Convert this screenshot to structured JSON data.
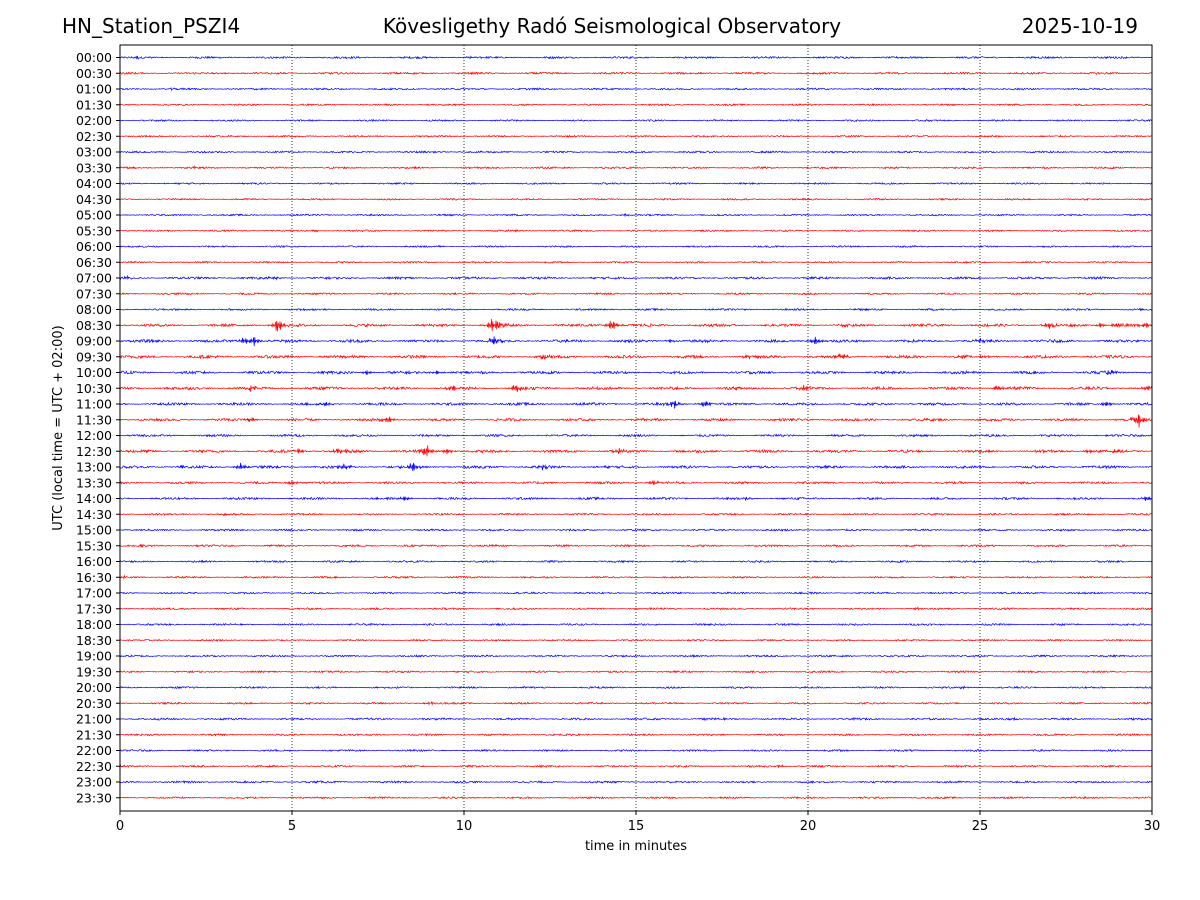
{
  "header": {
    "station": "HN_Station_PSZI4",
    "observatory": "Kövesligethy Radó Seismological Observatory",
    "date": "2025-10-19"
  },
  "chart_data": {
    "type": "line",
    "title": "Kövesligethy Radó Seismological Observatory",
    "xlabel": "time in minutes",
    "ylabel": "UTC (local time = UTC + 02:00)",
    "xlim": [
      0,
      30
    ],
    "x_ticks": [
      0,
      5,
      10,
      15,
      20,
      25,
      30
    ],
    "vertical_grid_minutes": [
      5,
      10,
      15,
      20,
      25
    ],
    "grid": "dotted vertical",
    "trace_colors": [
      "#0000ff",
      "#ff0000"
    ],
    "rows": [
      {
        "label": "00:00",
        "amp": 0.8,
        "events": [
          [
            0.5,
            1.0
          ],
          [
            10.2,
            0.8
          ],
          [
            17.2,
            1.2
          ]
        ]
      },
      {
        "label": "00:30",
        "amp": 0.8,
        "events": [
          [
            4.6,
            1.2
          ],
          [
            3.0,
            0.8
          ]
        ]
      },
      {
        "label": "01:00",
        "amp": 0.7,
        "events": [
          [
            1.5,
            0.8
          ]
        ]
      },
      {
        "label": "01:30",
        "amp": 0.6,
        "events": [
          [
            9.0,
            0.8
          ]
        ]
      },
      {
        "label": "02:00",
        "amp": 0.6,
        "events": []
      },
      {
        "label": "02:30",
        "amp": 0.6,
        "events": []
      },
      {
        "label": "03:00",
        "amp": 0.7,
        "events": []
      },
      {
        "label": "03:30",
        "amp": 0.7,
        "events": [
          [
            2.2,
            1.2
          ]
        ]
      },
      {
        "label": "04:00",
        "amp": 0.6,
        "events": []
      },
      {
        "label": "04:30",
        "amp": 0.6,
        "events": []
      },
      {
        "label": "05:00",
        "amp": 0.6,
        "events": [
          [
            14.7,
            1.5
          ]
        ]
      },
      {
        "label": "05:30",
        "amp": 0.6,
        "events": [
          [
            11.5,
            1.2
          ],
          [
            5.7,
            1.0
          ]
        ]
      },
      {
        "label": "06:00",
        "amp": 0.6,
        "events": [
          [
            9.3,
            1.0
          ]
        ]
      },
      {
        "label": "06:30",
        "amp": 0.6,
        "events": []
      },
      {
        "label": "07:00",
        "amp": 0.9,
        "events": [
          [
            0.2,
            1.2
          ],
          [
            4.5,
            1.8
          ]
        ]
      },
      {
        "label": "07:30",
        "amp": 0.7,
        "events": []
      },
      {
        "label": "08:00",
        "amp": 0.7,
        "events": []
      },
      {
        "label": "08:30",
        "amp": 1.2,
        "events": [
          [
            4.6,
            9.0
          ],
          [
            10.8,
            6.0
          ],
          [
            11.0,
            5.0
          ],
          [
            14.3,
            6.5
          ],
          [
            21.0,
            2.0
          ],
          [
            27.0,
            4.0
          ],
          [
            28.5,
            3.0
          ],
          [
            29.0,
            3.0
          ],
          [
            29.8,
            4.0
          ]
        ]
      },
      {
        "label": "09:00",
        "amp": 1.2,
        "events": [
          [
            3.6,
            4.0
          ],
          [
            3.9,
            5.0
          ],
          [
            10.9,
            7.0
          ],
          [
            16.0,
            2.0
          ],
          [
            20.2,
            5.0
          ],
          [
            25.0,
            3.0
          ]
        ]
      },
      {
        "label": "09:30",
        "amp": 1.3,
        "events": [
          [
            12.3,
            3.0
          ],
          [
            18.2,
            3.0
          ],
          [
            21.0,
            5.0
          ],
          [
            24.5,
            2.5
          ]
        ]
      },
      {
        "label": "10:00",
        "amp": 1.2,
        "events": [
          [
            7.2,
            3.0
          ],
          [
            9.2,
            2.5
          ],
          [
            28.8,
            2.5
          ]
        ]
      },
      {
        "label": "10:30",
        "amp": 1.3,
        "events": [
          [
            3.8,
            3.0
          ],
          [
            9.7,
            4.0
          ],
          [
            11.5,
            5.0
          ],
          [
            19.9,
            4.0
          ],
          [
            25.5,
            3.5
          ],
          [
            29.9,
            3.0
          ]
        ]
      },
      {
        "label": "11:00",
        "amp": 1.1,
        "events": [
          [
            6.0,
            3.0
          ],
          [
            16.1,
            6.0
          ],
          [
            17.0,
            4.0
          ],
          [
            28.7,
            3.0
          ]
        ]
      },
      {
        "label": "11:30",
        "amp": 1.1,
        "events": [
          [
            3.8,
            3.0
          ],
          [
            7.8,
            5.0
          ],
          [
            29.6,
            9.0
          ]
        ]
      },
      {
        "label": "12:00",
        "amp": 0.9,
        "events": []
      },
      {
        "label": "12:30",
        "amp": 1.2,
        "events": [
          [
            5.2,
            3.0
          ],
          [
            6.4,
            5.0
          ],
          [
            8.9,
            8.0
          ],
          [
            9.5,
            4.0
          ],
          [
            14.5,
            3.0
          ],
          [
            28.2,
            3.0
          ]
        ]
      },
      {
        "label": "13:00",
        "amp": 1.1,
        "events": [
          [
            1.8,
            2.5
          ],
          [
            3.5,
            4.0
          ],
          [
            6.5,
            4.0
          ],
          [
            8.5,
            7.0
          ],
          [
            12.3,
            3.0
          ]
        ]
      },
      {
        "label": "13:30",
        "amp": 0.9,
        "events": [
          [
            5.0,
            3.0
          ],
          [
            15.5,
            2.5
          ]
        ]
      },
      {
        "label": "14:00",
        "amp": 0.9,
        "events": [
          [
            8.3,
            3.0
          ],
          [
            18.2,
            2.0
          ],
          [
            29.8,
            2.0
          ]
        ]
      },
      {
        "label": "14:30",
        "amp": 0.7,
        "events": [
          [
            3.0,
            1.5
          ]
        ]
      },
      {
        "label": "15:00",
        "amp": 0.7,
        "events": []
      },
      {
        "label": "15:30",
        "amp": 0.8,
        "events": [
          [
            0.6,
            1.5
          ]
        ]
      },
      {
        "label": "16:00",
        "amp": 0.7,
        "events": []
      },
      {
        "label": "16:30",
        "amp": 0.7,
        "events": [
          [
            0.1,
            1.5
          ]
        ]
      },
      {
        "label": "17:00",
        "amp": 0.7,
        "events": []
      },
      {
        "label": "17:30",
        "amp": 0.7,
        "events": [
          [
            15.0,
            1.2
          ],
          [
            23.2,
            1.5
          ]
        ]
      },
      {
        "label": "18:00",
        "amp": 0.7,
        "events": []
      },
      {
        "label": "18:30",
        "amp": 0.6,
        "events": []
      },
      {
        "label": "19:00",
        "amp": 0.7,
        "events": []
      },
      {
        "label": "19:30",
        "amp": 0.7,
        "events": []
      },
      {
        "label": "20:00",
        "amp": 0.7,
        "events": [
          [
            24.5,
            1.2
          ]
        ]
      },
      {
        "label": "20:30",
        "amp": 0.7,
        "events": [
          [
            9.0,
            1.5
          ]
        ]
      },
      {
        "label": "21:00",
        "amp": 0.8,
        "events": [
          [
            17.0,
            1.2
          ],
          [
            26.0,
            1.2
          ]
        ]
      },
      {
        "label": "21:30",
        "amp": 0.7,
        "events": []
      },
      {
        "label": "22:00",
        "amp": 0.7,
        "events": []
      },
      {
        "label": "22:30",
        "amp": 0.7,
        "events": [
          [
            19.2,
            1.5
          ]
        ]
      },
      {
        "label": "23:00",
        "amp": 0.8,
        "events": []
      },
      {
        "label": "23:30",
        "amp": 0.7,
        "events": []
      }
    ]
  }
}
